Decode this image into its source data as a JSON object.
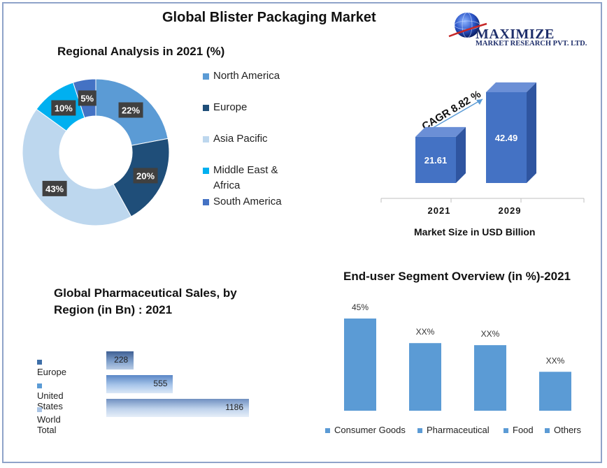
{
  "title": "Global Blister Packaging Market",
  "logo": {
    "name": "MAXIMIZE",
    "subtitle": "MARKET RESEARCH PVT. LTD."
  },
  "colors": {
    "north_america": "#5b9bd5",
    "europe": "#1f4e79",
    "asia_pacific": "#bdd7ee",
    "middle_east_africa": "#00b0f0",
    "south_america": "#4472c4",
    "bar3d": "#4472c4",
    "enduser": "#5b9bd5"
  },
  "regional": {
    "title": "Regional Analysis in 2021 (%)"
  },
  "market": {
    "cagr_label": "CAGR 8.82 %",
    "xlabel": "Market Size in USD Billion"
  },
  "pharma": {
    "title_line1": "Global Pharmaceutical Sales, by",
    "title_line2": "Region (in Bn) : 2021"
  },
  "enduser": {
    "title": "End-user Segment Overview (in %)-2021"
  },
  "chart_data": [
    {
      "type": "pie",
      "title": "Regional Analysis in 2021 (%)",
      "donut": true,
      "legend_position": "right",
      "categories": [
        "North America",
        "Europe",
        "Asia Pacific",
        "Middle East & Africa",
        "South America"
      ],
      "values": [
        22,
        20,
        43,
        10,
        5
      ],
      "data_labels": [
        "22%",
        "20%",
        "43%",
        "10%",
        "5%"
      ]
    },
    {
      "type": "bar",
      "title": "",
      "xlabel": "Market Size in USD Billion",
      "categories": [
        "2021",
        "2029"
      ],
      "values": [
        21.61,
        42.49
      ],
      "annotation": "CAGR 8.82 %",
      "grid": false
    },
    {
      "type": "bar",
      "orientation": "horizontal",
      "title": "Global Pharmaceutical Sales, by Region (in Bn) : 2021",
      "categories": [
        "Europe",
        "United States",
        "World Total"
      ],
      "values": [
        228,
        555,
        1186
      ],
      "grid": false
    },
    {
      "type": "bar",
      "title": "End-user Segment Overview (in %)-2021",
      "legend_position": "bottom",
      "categories": [
        "Consumer Goods",
        "Pharmaceutical",
        "Food",
        "Others"
      ],
      "values": [
        45,
        33,
        32,
        19
      ],
      "data_labels": [
        "45%",
        "XX%",
        "XX%",
        "XX%"
      ],
      "grid": false
    }
  ]
}
